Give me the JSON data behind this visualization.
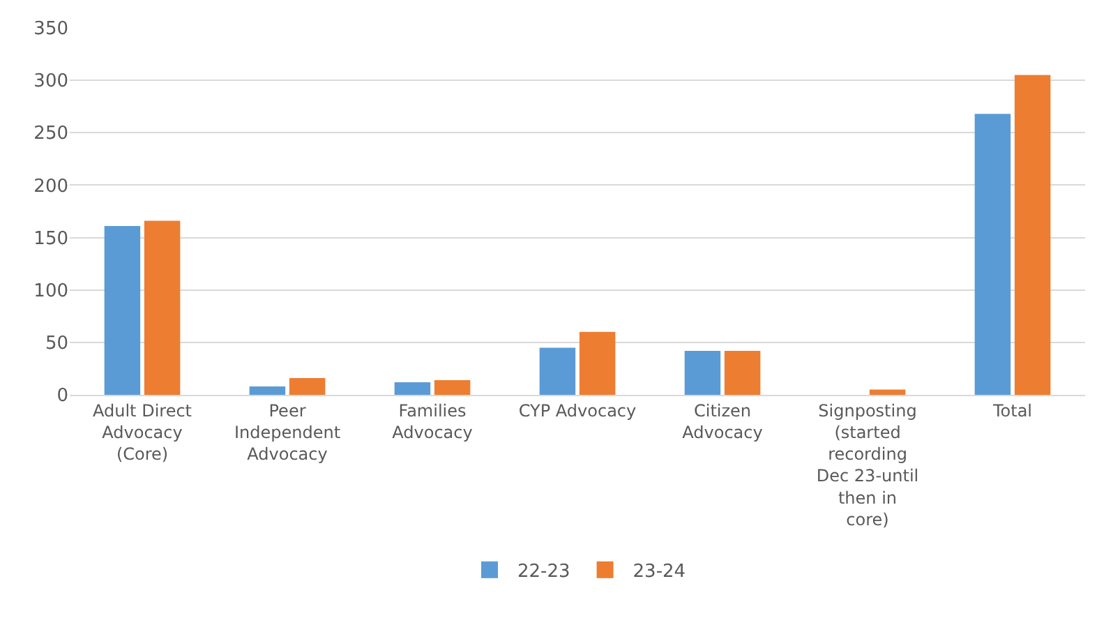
{
  "chart_data": {
    "type": "bar",
    "categories": [
      "Adult Direct Advocacy (Core)",
      "Peer Independent Advocacy",
      "Families Advocacy",
      "CYP Advocacy",
      "Citizen Advocacy",
      "Signposting (started recording Dec 23-until then in core)",
      "Total"
    ],
    "series": [
      {
        "name": "22-23",
        "color": "#5b9bd5",
        "values": [
          161,
          8,
          12,
          45,
          42,
          null,
          268
        ]
      },
      {
        "name": "23-24",
        "color": "#ed7d31",
        "values": [
          166,
          16,
          14,
          60,
          42,
          5,
          305
        ]
      }
    ],
    "ylim": [
      0,
      350
    ],
    "yticks": [
      0,
      50,
      100,
      150,
      200,
      250,
      300,
      350
    ],
    "grid": "y",
    "legend": "bottom"
  }
}
